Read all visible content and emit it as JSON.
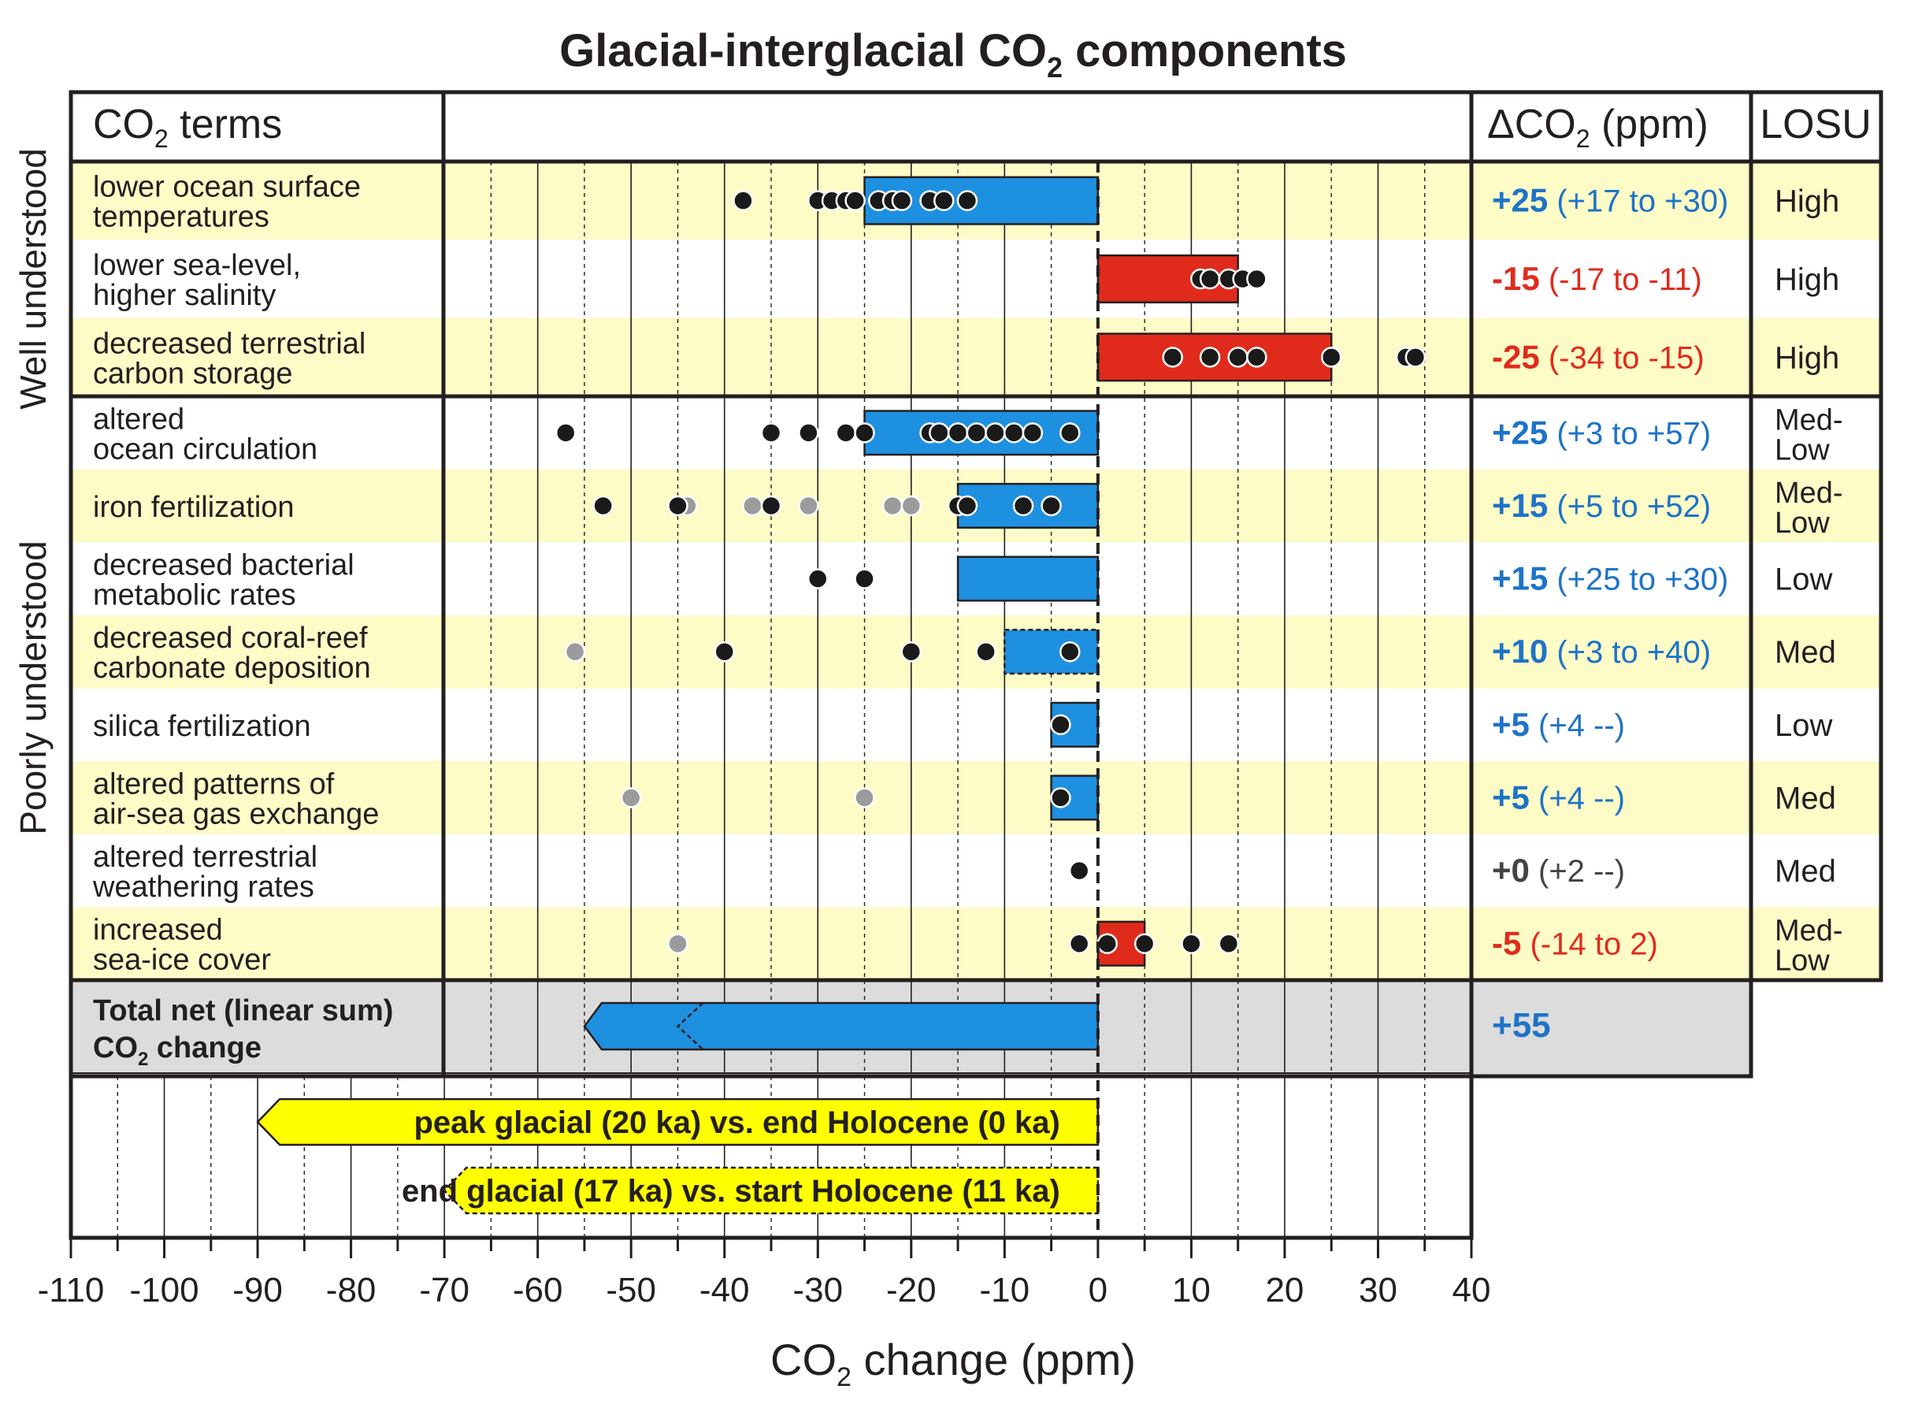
{
  "title": "Glacial-interglacial CO",
  "title_sub": "2",
  "title_end": " components",
  "groups": [
    {
      "label": "Well understood"
    },
    {
      "label": "Poorly understood"
    }
  ],
  "headers": {
    "terms": "CO",
    "terms_sub": "2",
    "terms_end": " terms",
    "delta_prefix": "ΔCO",
    "delta_sub": "2",
    "delta_end": " (ppm)",
    "losu": "LOSU"
  },
  "rows": [
    {
      "l1": "lower ocean surface",
      "l2": "temperatures",
      "val": "+25",
      "range": "(+17 to +30)",
      "losu1": "High",
      "losu2": "",
      "bg": "#fdfbc6",
      "color": "#1e73c8"
    },
    {
      "l1": "lower sea-level,",
      "l2": "higher salinity",
      "val": "-15",
      "range": "(-17 to -11)",
      "losu1": "High",
      "losu2": "",
      "bg": "#ffffff",
      "color": "#e02b1c"
    },
    {
      "l1": "decreased terrestrial",
      "l2": "carbon storage",
      "val": "-25",
      "range": "(-34 to -15)",
      "losu1": "High",
      "losu2": "",
      "bg": "#fdfbc6",
      "color": "#e02b1c"
    },
    {
      "l1": "altered",
      "l2": "ocean circulation",
      "val": "+25",
      "range": "(+3 to +57)",
      "losu1": "Med-",
      "losu2": "Low",
      "bg": "#ffffff",
      "color": "#1e73c8"
    },
    {
      "l1": "iron fertilization",
      "l2": "",
      "val": "+15",
      "range": "(+5 to +52)",
      "losu1": "Med-",
      "losu2": "Low",
      "bg": "#fdfbc6",
      "color": "#1e73c8"
    },
    {
      "l1": "decreased bacterial",
      "l2": "metabolic rates",
      "val": "+15",
      "range": "(+25 to +30)",
      "losu1": "Low",
      "losu2": "",
      "bg": "#ffffff",
      "color": "#1e73c8"
    },
    {
      "l1": "decreased coral-reef",
      "l2": "carbonate deposition",
      "val": "+10",
      "range": "(+3 to +40)",
      "losu1": "Med",
      "losu2": "",
      "bg": "#fdfbc6",
      "color": "#1e73c8"
    },
    {
      "l1": "silica fertilization",
      "l2": "",
      "val": "+5",
      "range": "(+4 --)",
      "losu1": "Low",
      "losu2": "",
      "bg": "#ffffff",
      "color": "#1e73c8"
    },
    {
      "l1": "altered patterns of",
      "l2": "air-sea gas exchange",
      "val": "+5",
      "range": "(+4 --)",
      "losu1": "Med",
      "losu2": "",
      "bg": "#fdfbc6",
      "color": "#1e73c8"
    },
    {
      "l1": "altered terrestrial",
      "l2": "weathering rates",
      "val": "+0",
      "range": "(+2 --)",
      "losu1": "Med",
      "losu2": "",
      "bg": "#ffffff",
      "color": "#444444"
    },
    {
      "l1": "increased",
      "l2": "sea-ice cover",
      "val": "-5",
      "range": "(-14 to 2)",
      "losu1": "Med-",
      "losu2": "Low",
      "bg": "#fdfbc6",
      "color": "#e02b1c"
    }
  ],
  "total": {
    "l1": "Total net (linear sum)",
    "l2": "CO",
    "l2_sub": "2",
    "l2_end": " change",
    "val": "+55",
    "color": "#1e73c8"
  },
  "comparisons": [
    {
      "label": "peak glacial (20 ka) vs. end Holocene (0 ka)",
      "value": -90,
      "dashed": false
    },
    {
      "label": "end glacial (17 ka) vs. start Holocene (11 ka)",
      "value": -70,
      "dashed": true
    }
  ],
  "axis": {
    "xlabel_pre": "CO",
    "xlabel_sub": "2",
    "xlabel_end": " change (ppm)",
    "ticks": [
      "-110",
      "-100",
      "-90",
      "-80",
      "-70",
      "-60",
      "-50",
      "-40",
      "-30",
      "-20",
      "-10",
      "0",
      "10",
      "20",
      "30",
      "40"
    ]
  },
  "colors": {
    "positive": "#1e90e0",
    "negative": "#e02b1c",
    "yellow": "#ffff00",
    "highlight": "#fdfbc6",
    "total_bg": "#dcdcdc",
    "black_dot": "#1a1a1a",
    "grey_dot": "#9b9b9b"
  },
  "chart_data": {
    "type": "bar",
    "orientation": "horizontal",
    "xlabel": "CO2 change (ppm)",
    "xlim": [
      -110,
      40
    ],
    "categories": [
      "lower ocean surface temperatures",
      "lower sea-level, higher salinity",
      "decreased terrestrial carbon storage",
      "altered ocean circulation",
      "iron fertilization",
      "decreased bacterial metabolic rates",
      "decreased coral-reef carbonate deposition",
      "silica fertilization",
      "altered patterns of air-sea gas exchange",
      "altered terrestrial weathering rates",
      "increased sea-ice cover"
    ],
    "bars": [
      {
        "value": -25,
        "dashed": false
      },
      {
        "value": 15,
        "dashed": false
      },
      {
        "value": 25,
        "dashed": false
      },
      {
        "value": -25,
        "dashed": false
      },
      {
        "value": -15,
        "dashed": false
      },
      {
        "value": -15,
        "dashed": false
      },
      {
        "value": -10,
        "dashed": true
      },
      {
        "value": -5,
        "dashed": false
      },
      {
        "value": -5,
        "dashed": false
      },
      {
        "value": 0,
        "dashed": false
      },
      {
        "value": 5,
        "dashed": false
      }
    ],
    "points": [
      {
        "black": [
          -38,
          -30,
          -28.5,
          -27,
          -26,
          -23.5,
          -22,
          -21,
          -18,
          -16.5,
          -14
        ],
        "grey": []
      },
      {
        "black": [
          11,
          12,
          14,
          15.5,
          17
        ],
        "grey": []
      },
      {
        "black": [
          8,
          12,
          15,
          17,
          25,
          33,
          34
        ],
        "grey": []
      },
      {
        "black": [
          -57,
          -35,
          -31,
          -27,
          -25,
          -18,
          -17,
          -15,
          -13,
          -11,
          -9,
          -7,
          -3
        ],
        "grey": []
      },
      {
        "black": [
          -53,
          -45,
          -35,
          -15,
          -14,
          -8,
          -5
        ],
        "grey": [
          -44,
          -37,
          -31,
          -22,
          -20
        ]
      },
      {
        "black": [
          -30,
          -25
        ],
        "grey": []
      },
      {
        "black": [
          -40,
          -20,
          -12,
          -3
        ],
        "grey": [
          -56
        ]
      },
      {
        "black": [
          -4
        ],
        "grey": []
      },
      {
        "black": [
          -4
        ],
        "grey": [
          -50,
          -25
        ]
      },
      {
        "black": [
          -2
        ],
        "grey": []
      },
      {
        "black": [
          -2,
          1,
          5,
          10,
          14
        ],
        "grey": [
          -45
        ]
      }
    ],
    "total": {
      "value": -55,
      "alt_value": -45
    }
  }
}
